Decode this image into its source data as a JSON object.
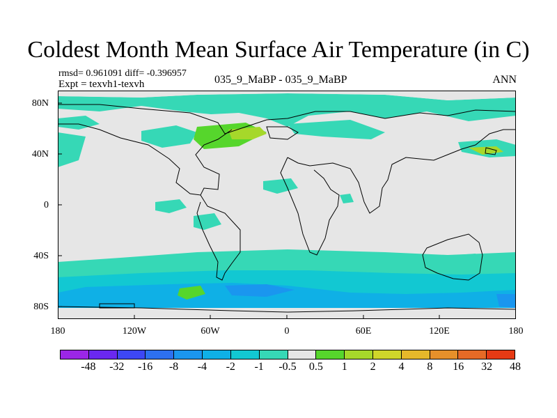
{
  "title": "Coldest Month Mean Surface Air Temperature (in C)",
  "stats": "rmsd= 0.961091 diff= -0.396957",
  "experiment": "Expt = texvh1-texvh",
  "period": "035_9_MaBP - 035_9_MaBP",
  "season": "ANN",
  "lat_labels": [
    "80N",
    "40N",
    "0",
    "40S",
    "80S"
  ],
  "lon_labels": [
    "180",
    "120W",
    "60W",
    "0",
    "60E",
    "120E",
    "180"
  ],
  "colorbar": {
    "labels": [
      "-48",
      "-32",
      "-16",
      "-8",
      "-4",
      "-2",
      "-1",
      "-0.5",
      "0.5",
      "1",
      "2",
      "4",
      "8",
      "16",
      "32",
      "48"
    ],
    "colors": [
      "#9b26e6",
      "#6a28f0",
      "#3d47f5",
      "#2d70f0",
      "#1a96ef",
      "#0fb0e6",
      "#12c8d2",
      "#36d8b6",
      "#e6e6e6",
      "#56d62c",
      "#a6d82a",
      "#cfd62a",
      "#e6b82a",
      "#e6902a",
      "#e66a26",
      "#e63a14"
    ]
  },
  "colors": {
    "land_sea_neutral": "#e6e6e6",
    "cool_light": "#36d8b6",
    "cool_medium": "#12c8d2",
    "cool_strong": "#0fb0e6",
    "cool_deep": "#1a96ef",
    "warm_light": "#56d62c",
    "warm_medium": "#a6d82a"
  }
}
